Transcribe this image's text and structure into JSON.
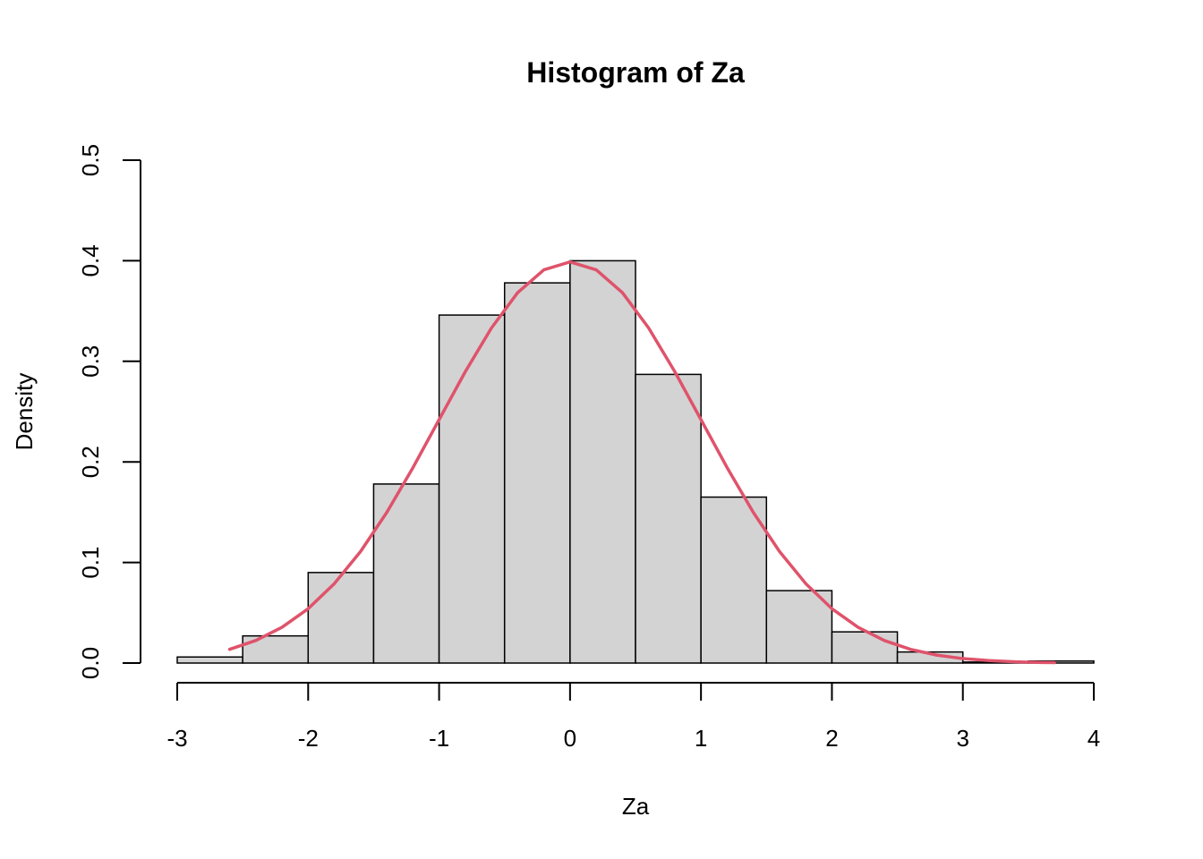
{
  "chart_data": {
    "type": "bar",
    "title": "Histogram of Za",
    "xlabel": "Za",
    "ylabel": "Density",
    "xlim": [
      -3,
      4
    ],
    "ylim": [
      0,
      0.5
    ],
    "x_ticks": [
      -3,
      -2,
      -1,
      0,
      1,
      2,
      3,
      4
    ],
    "x_tick_labels": [
      "-3",
      "-2",
      "-1",
      "0",
      "1",
      "2",
      "3",
      "4"
    ],
    "y_ticks": [
      0,
      0.1,
      0.2,
      0.3,
      0.4,
      0.5
    ],
    "y_tick_labels": [
      "0.0",
      "0.1",
      "0.2",
      "0.3",
      "0.4",
      "0.5"
    ],
    "bins": [
      {
        "x0": -3.0,
        "x1": -2.5,
        "density": 0.006
      },
      {
        "x0": -2.5,
        "x1": -2.0,
        "density": 0.027
      },
      {
        "x0": -2.0,
        "x1": -1.5,
        "density": 0.09
      },
      {
        "x0": -1.5,
        "x1": -1.0,
        "density": 0.178
      },
      {
        "x0": -1.0,
        "x1": -0.5,
        "density": 0.346
      },
      {
        "x0": -0.5,
        "x1": 0.0,
        "density": 0.378
      },
      {
        "x0": 0.0,
        "x1": 0.5,
        "density": 0.4
      },
      {
        "x0": 0.5,
        "x1": 1.0,
        "density": 0.287
      },
      {
        "x0": 1.0,
        "x1": 1.5,
        "density": 0.165
      },
      {
        "x0": 1.5,
        "x1": 2.0,
        "density": 0.072
      },
      {
        "x0": 2.0,
        "x1": 2.5,
        "density": 0.031
      },
      {
        "x0": 2.5,
        "x1": 3.0,
        "density": 0.011
      },
      {
        "x0": 3.0,
        "x1": 3.5,
        "density": 0.001
      },
      {
        "x0": 3.5,
        "x1": 4.0,
        "density": 0.002
      }
    ],
    "curve": {
      "x": [
        -2.6,
        -2.4,
        -2.2,
        -2.0,
        -1.8,
        -1.6,
        -1.4,
        -1.2,
        -1.0,
        -0.8,
        -0.6,
        -0.4,
        -0.2,
        0.0,
        0.2,
        0.4,
        0.6,
        0.8,
        1.0,
        1.2,
        1.4,
        1.6,
        1.8,
        2.0,
        2.2,
        2.4,
        2.6,
        2.8,
        3.0,
        3.2,
        3.4,
        3.6,
        3.7
      ],
      "y": [
        0.0136,
        0.0224,
        0.0355,
        0.054,
        0.079,
        0.1109,
        0.1497,
        0.1942,
        0.242,
        0.2897,
        0.3332,
        0.3683,
        0.391,
        0.3989,
        0.391,
        0.3683,
        0.3332,
        0.2897,
        0.242,
        0.1942,
        0.1497,
        0.1109,
        0.079,
        0.054,
        0.0355,
        0.0224,
        0.0136,
        0.0079,
        0.0044,
        0.0024,
        0.0012,
        0.0006,
        0.0004
      ]
    },
    "colors": {
      "bar_fill": "#d3d3d3",
      "bar_stroke": "#000000",
      "curve": "#df536b"
    },
    "grid": false,
    "legend": "none"
  }
}
